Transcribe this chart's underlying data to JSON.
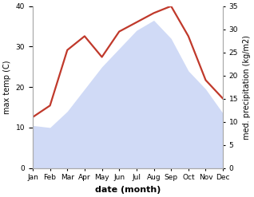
{
  "months": [
    "Jan",
    "Feb",
    "Mar",
    "Apr",
    "May",
    "Jun",
    "Jul",
    "Aug",
    "Sep",
    "Oct",
    "Nov",
    "Dec"
  ],
  "temp": [
    10.5,
    10.0,
    14.0,
    19.5,
    25.0,
    29.5,
    34.0,
    36.5,
    32.0,
    24.0,
    19.5,
    13.5
  ],
  "precip": [
    11.0,
    13.5,
    25.5,
    28.5,
    24.0,
    29.5,
    31.5,
    33.5,
    35.0,
    28.5,
    19.0,
    15.0
  ],
  "precip_color": "#c0392b",
  "temp_fill_color": "#c8d4f5",
  "temp_fill_alpha": 0.85,
  "xlabel": "date (month)",
  "ylabel_left": "max temp (C)",
  "ylabel_right": "med. precipitation (kg/m2)",
  "ylim_left": [
    0,
    40
  ],
  "ylim_right": [
    0,
    35
  ],
  "yticks_left": [
    0,
    10,
    20,
    30,
    40
  ],
  "yticks_right": [
    0,
    5,
    10,
    15,
    20,
    25,
    30,
    35
  ],
  "bg_color": "#ffffff",
  "spine_color": "#aaaaaa",
  "tick_label_size": 6.5,
  "axis_label_size": 7,
  "xlabel_size": 8,
  "precip_linewidth": 1.6
}
